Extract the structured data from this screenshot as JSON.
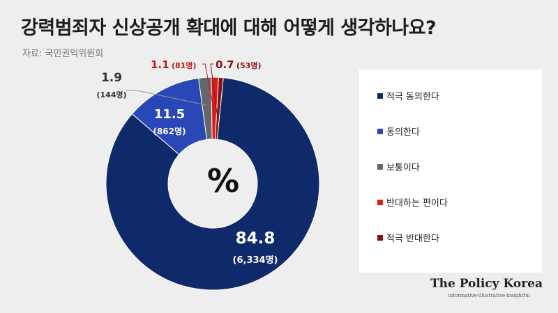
{
  "title": "강력범죄자 신상공개 확대에 대해 어떻게 생각하나요?",
  "source": "자료: 국민권익위원회",
  "center_label": "%",
  "brand": {
    "name": "The Policy Korea",
    "tagline": "informative·illustrative·insightful"
  },
  "chart_data": {
    "type": "pie",
    "unit": "%",
    "series": [
      {
        "name": "적극 동의한다",
        "value": 84.8,
        "count": "(6,334명)",
        "color": "#0f2a6b"
      },
      {
        "name": "동의한다",
        "value": 11.5,
        "count": "(862명)",
        "color": "#2a47b8"
      },
      {
        "name": "보통이다",
        "value": 1.9,
        "count": "(144명)",
        "color": "#666666"
      },
      {
        "name": "반대하는 편이다",
        "value": 1.1,
        "count": "(81명)",
        "color": "#d81e1e"
      },
      {
        "name": "적극 반대한다",
        "value": 0.7,
        "count": "(53명)",
        "color": "#8a1010"
      }
    ],
    "labels": {
      "s0_value": "84.8",
      "s0_count": "(6,334명)",
      "s1_value": "11.5",
      "s1_count": "(862명)",
      "s2_value": "1.9",
      "s2_count": "(144명)",
      "s3_value": "1.1",
      "s3_count": "(81명)",
      "s4_value": "0.7",
      "s4_count": "(53명)"
    }
  }
}
